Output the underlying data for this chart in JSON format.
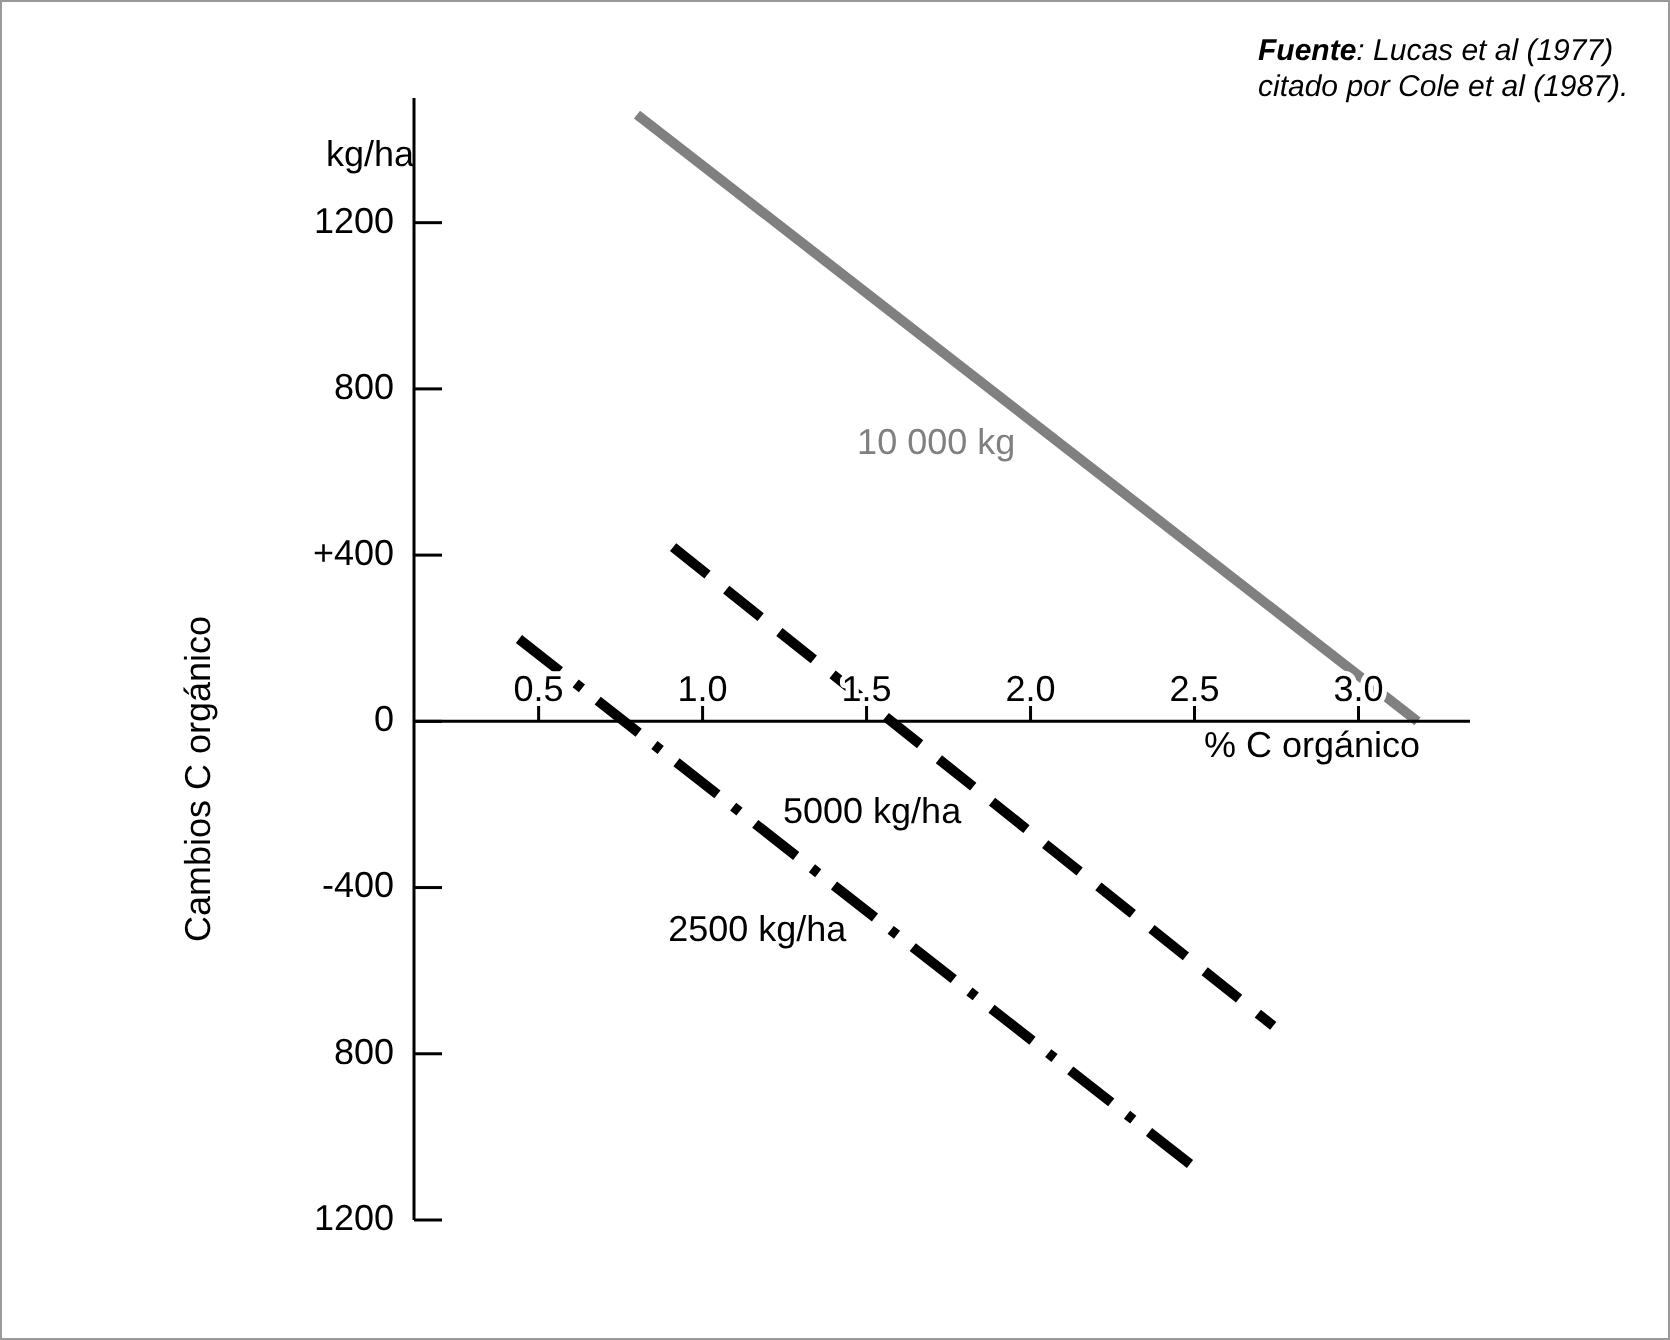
{
  "chart_data": {
    "type": "line",
    "xlabel": "% C orgánico",
    "ylabel": "Cambios C orgánico",
    "annotations": [
      "kg/ha",
      "Fuente: Lucas et al (1977) citado por Cole et al (1987)."
    ],
    "series": [
      {
        "name": "10 000 kg",
        "color": "#808080",
        "line_style": "solid",
        "x": [
          0.8,
          3.18
        ],
        "values": [
          1460,
          0
        ]
      },
      {
        "name": "5000 kg/ha",
        "color": "#000000",
        "line_style": "dashed",
        "x": [
          0.91,
          2.74
        ],
        "values": [
          419,
          -733
        ]
      },
      {
        "name": "2500 kg/ha",
        "color": "#000000",
        "line_style": "dashdot",
        "x": [
          0.44,
          2.51
        ],
        "values": [
          198,
          -1080
        ]
      }
    ],
    "xlim": [
      0.12,
      3.34
    ],
    "ylim": [
      -1200,
      1500
    ],
    "xticks": [
      0.5,
      {
        "value": 1,
        "label": "1.0"
      },
      1.5,
      {
        "value": 2,
        "label": "2.0"
      },
      2.5,
      {
        "value": 3,
        "label": "3.0"
      }
    ],
    "yticks": [
      1200,
      800,
      {
        "value": 400,
        "label": "+400"
      },
      0,
      -400,
      {
        "value": -800,
        "label": "800"
      },
      {
        "value": -1200,
        "label": "1200"
      }
    ],
    "legend": false,
    "marker": "none"
  }
}
